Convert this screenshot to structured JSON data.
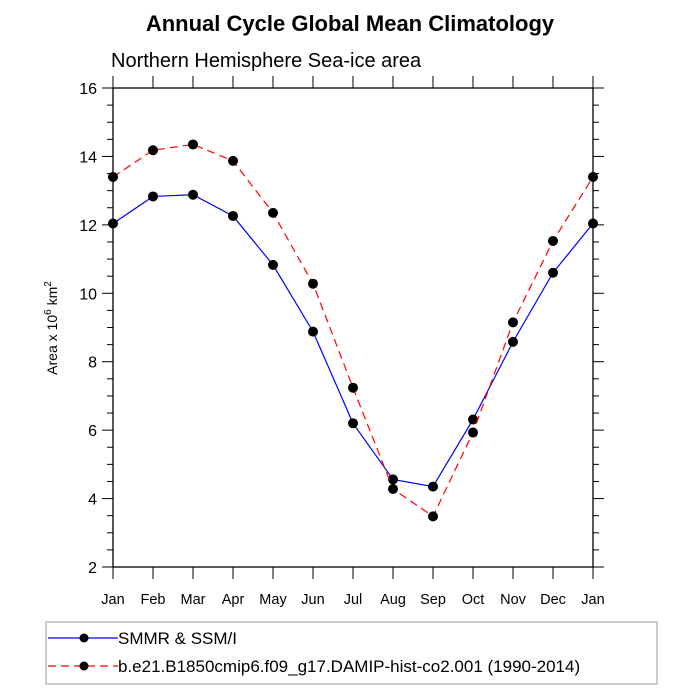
{
  "chart_data": {
    "type": "line",
    "title": "Annual Cycle Global Mean Climatology",
    "subtitle": "Northern Hemisphere Sea-ice area",
    "xlabel": "",
    "ylabel": "Area x 10",
    "ylabel_exponent": "6",
    "ylabel_unit": " km",
    "ylabel_unit_exponent": "2",
    "categories": [
      "Jan",
      "Feb",
      "Mar",
      "Apr",
      "May",
      "Jun",
      "Jul",
      "Aug",
      "Sep",
      "Oct",
      "Nov",
      "Dec",
      "Jan"
    ],
    "ylim": [
      2,
      16
    ],
    "yticks": [
      2,
      4,
      6,
      8,
      10,
      12,
      14,
      16
    ],
    "yminor_step": 0.5,
    "grid": false,
    "legend_position": "bottom",
    "series": [
      {
        "name": "SMMR & SSM/I",
        "color": "#0000ff",
        "dash": "solid",
        "marker": "filled-circle",
        "values": [
          12.04,
          12.83,
          12.88,
          12.26,
          10.83,
          8.88,
          6.2,
          4.56,
          4.35,
          6.31,
          8.58,
          10.6,
          12.04
        ]
      },
      {
        "name": "b.e21.B1850cmip6.f09_g17.DAMIP-hist-co2.001 (1990-2014)",
        "color": "#ff0000",
        "dash": "dashed",
        "marker": "filled-circle",
        "values": [
          13.4,
          14.18,
          14.35,
          13.87,
          12.35,
          10.28,
          7.24,
          4.28,
          3.48,
          5.93,
          9.15,
          11.53,
          13.4
        ]
      }
    ]
  }
}
